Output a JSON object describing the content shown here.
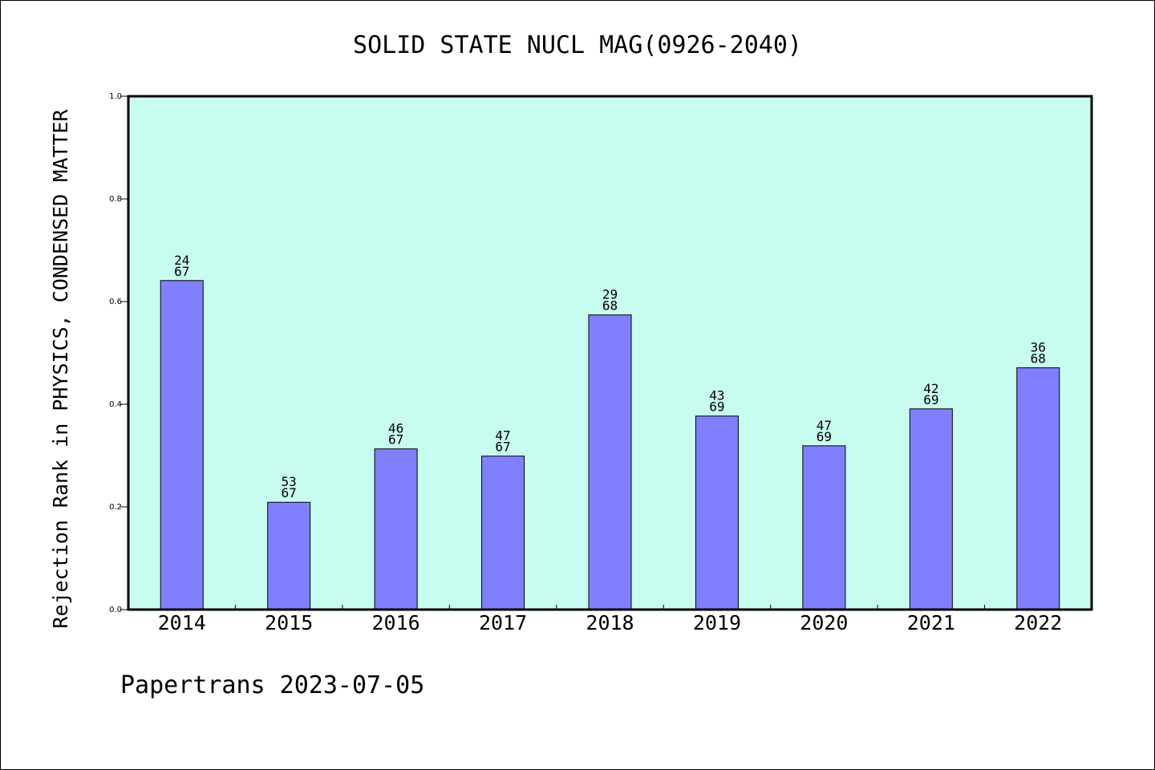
{
  "footer": "Papertrans 2023-07-05",
  "colors": {
    "plot_background": "#c8fcf0",
    "bar_fill": "#8080ff",
    "bar_stroke": "#000000"
  },
  "chart_data": {
    "type": "bar",
    "title": "SOLID STATE NUCL MAG(0926-2040)",
    "xlabel": "",
    "ylabel": "Rejection Rank in PHYSICS, CONDENSED MATTER",
    "ylim": [
      0,
      1.0
    ],
    "yticks": [
      "0.0",
      "0.2",
      "0.4",
      "0.6",
      "0.8",
      "1.0"
    ],
    "grid": false,
    "categories": [
      "2014",
      "2015",
      "2016",
      "2017",
      "2018",
      "2019",
      "2020",
      "2021",
      "2022"
    ],
    "values": [
      0.641,
      0.209,
      0.313,
      0.299,
      0.574,
      0.377,
      0.319,
      0.391,
      0.471
    ],
    "bar_labels": [
      [
        "24",
        "67"
      ],
      [
        "53",
        "67"
      ],
      [
        "46",
        "67"
      ],
      [
        "47",
        "67"
      ],
      [
        "29",
        "68"
      ],
      [
        "43",
        "69"
      ],
      [
        "47",
        "69"
      ],
      [
        "42",
        "69"
      ],
      [
        "36",
        "68"
      ]
    ]
  }
}
